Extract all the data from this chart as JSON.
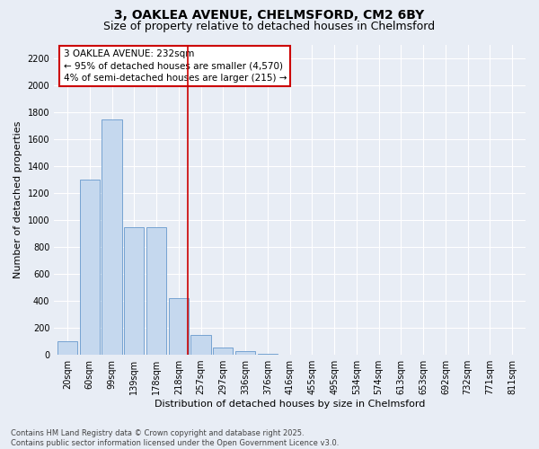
{
  "title_line1": "3, OAKLEA AVENUE, CHELMSFORD, CM2 6BY",
  "title_line2": "Size of property relative to detached houses in Chelmsford",
  "xlabel": "Distribution of detached houses by size in Chelmsford",
  "ylabel": "Number of detached properties",
  "categories": [
    "20sqm",
    "60sqm",
    "99sqm",
    "139sqm",
    "178sqm",
    "218sqm",
    "257sqm",
    "297sqm",
    "336sqm",
    "376sqm",
    "416sqm",
    "455sqm",
    "495sqm",
    "534sqm",
    "574sqm",
    "613sqm",
    "653sqm",
    "692sqm",
    "732sqm",
    "771sqm",
    "811sqm"
  ],
  "values": [
    100,
    1300,
    1750,
    950,
    950,
    420,
    150,
    55,
    25,
    10,
    2,
    0,
    0,
    0,
    0,
    0,
    0,
    0,
    0,
    0,
    0
  ],
  "bar_color": "#c5d8ee",
  "bar_edgecolor": "#6699cc",
  "vline_color": "#cc0000",
  "annotation_text": "3 OAKLEA AVENUE: 232sqm\n← 95% of detached houses are smaller (4,570)\n4% of semi-detached houses are larger (215) →",
  "ylim": [
    0,
    2300
  ],
  "yticks": [
    0,
    200,
    400,
    600,
    800,
    1000,
    1200,
    1400,
    1600,
    1800,
    2000,
    2200
  ],
  "bg_color": "#e8edf5",
  "plot_bg_color": "#e8edf5",
  "grid_color": "#ffffff",
  "footnote": "Contains HM Land Registry data © Crown copyright and database right 2025.\nContains public sector information licensed under the Open Government Licence v3.0.",
  "title_fontsize": 10,
  "subtitle_fontsize": 9,
  "tick_fontsize": 7,
  "ylabel_fontsize": 8,
  "xlabel_fontsize": 8,
  "annotation_fontsize": 7.5,
  "footnote_fontsize": 6,
  "vline_pos": 5.42
}
